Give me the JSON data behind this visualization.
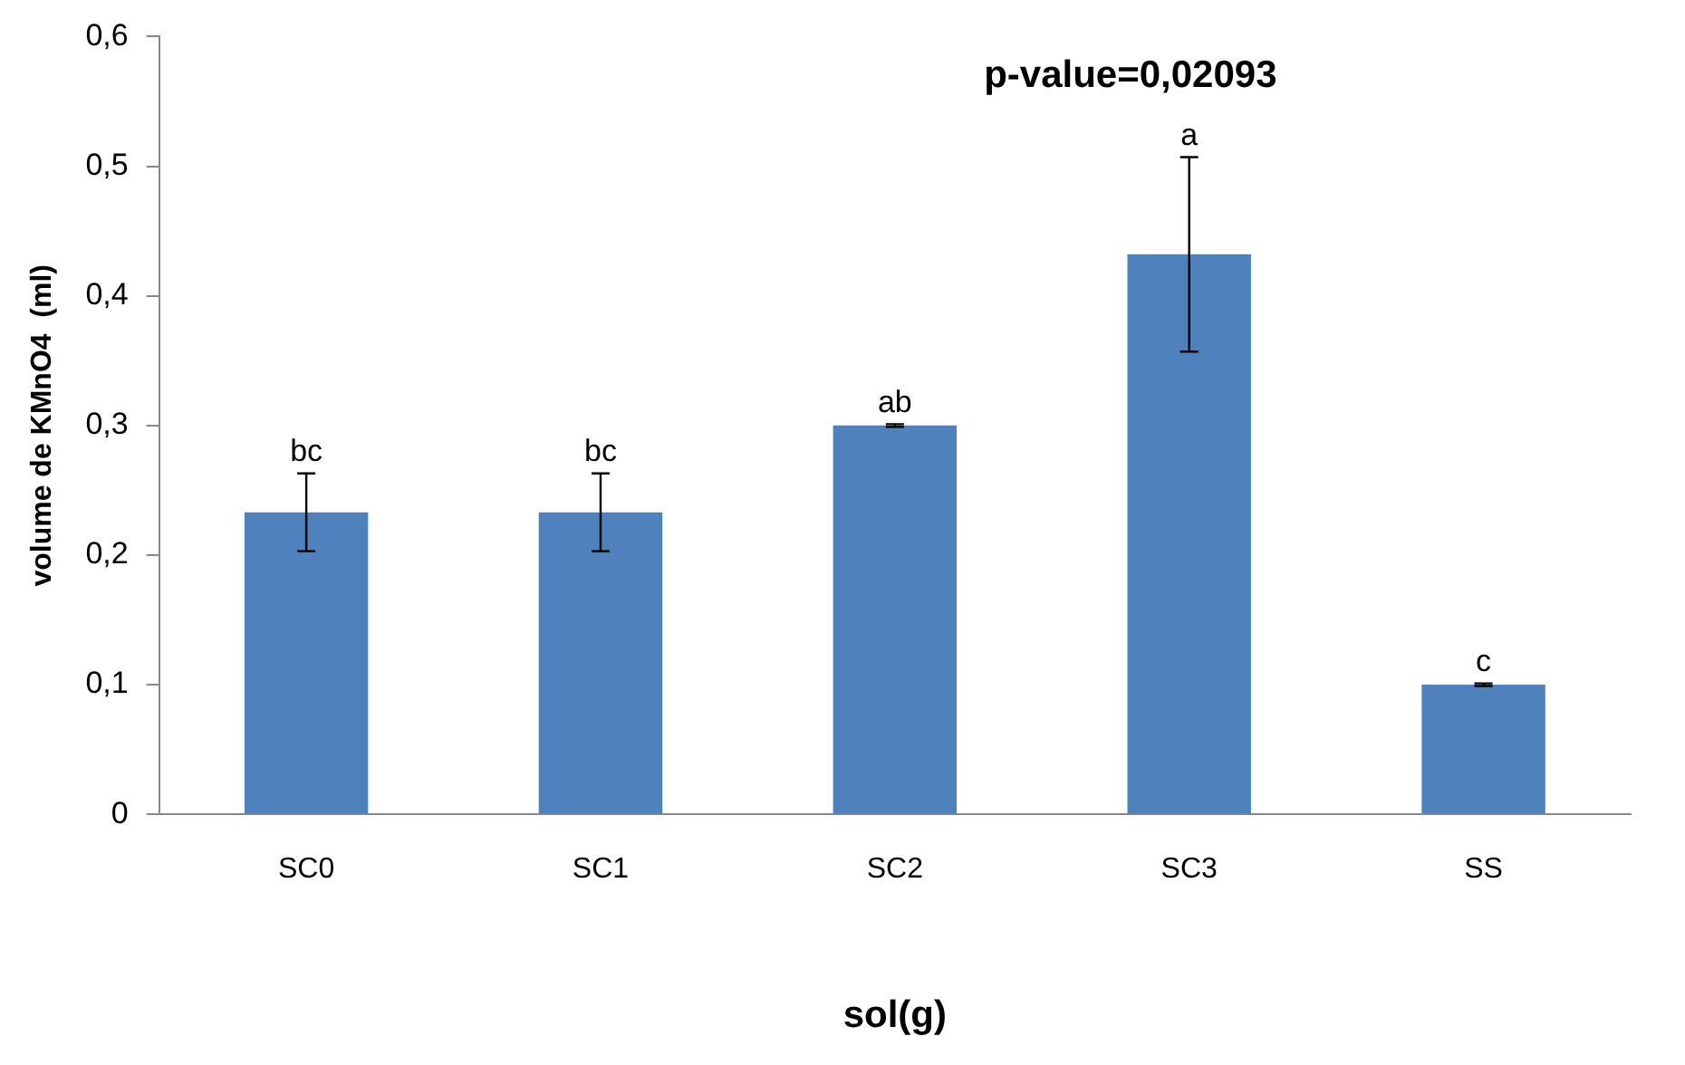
{
  "chart_data": {
    "type": "bar",
    "xlabel": "sol(g)",
    "ylabel": "volume de KMnO4  (ml)",
    "categories": [
      "SC0",
      "SC1",
      "SC2",
      "SC3",
      "SS"
    ],
    "values": [
      0.233,
      0.233,
      0.3,
      0.432,
      0.1
    ],
    "errors": [
      0.03,
      0.03,
      0.001,
      0.075,
      0.001
    ],
    "color": "#4f81bd",
    "ylim": [
      0,
      0.6
    ],
    "yticks": [
      {
        "value": 0,
        "label": "0"
      },
      {
        "value": 0.1,
        "label": "0,1"
      },
      {
        "value": 0.2,
        "label": "0,2"
      },
      {
        "value": 0.3,
        "label": "0,3"
      },
      {
        "value": 0.4,
        "label": "0,4"
      },
      {
        "value": 0.5,
        "label": "0,5"
      },
      {
        "value": 0.6,
        "label": "0,6"
      }
    ],
    "grid": false,
    "legend": false,
    "annotations": [
      "p-value=0,02093",
      {
        "text": "bc",
        "x": "SC0",
        "y": 0.263
      },
      {
        "text": "bc",
        "x": "SC1",
        "y": 0.263
      },
      {
        "text": "ab",
        "x": "SC2",
        "y": 0.301
      },
      {
        "text": "a",
        "x": "SC3",
        "y": 0.507
      },
      {
        "text": "c",
        "x": "SS",
        "y": 0.101
      }
    ]
  }
}
